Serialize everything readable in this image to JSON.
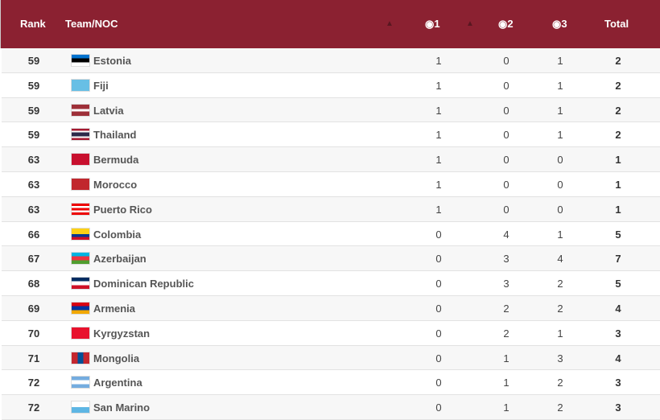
{
  "header": {
    "rank": "Rank",
    "team": "Team/NOC",
    "gold": "1",
    "silver": "2",
    "bronze": "3",
    "total": "Total",
    "medal_icon": "medal-icon",
    "sort_icon": "sort-icon",
    "bg": "#8b2131"
  },
  "rows": [
    {
      "rank": "59",
      "team": "Estonia",
      "gold": "1",
      "silver": "0",
      "bronze": "1",
      "total": "2",
      "flag": [
        "#0072ce",
        "#000000",
        "#ffffff"
      ]
    },
    {
      "rank": "59",
      "team": "Fiji",
      "gold": "1",
      "silver": "0",
      "bronze": "1",
      "total": "2",
      "flag": [
        "#68bfe5",
        "#68bfe5"
      ]
    },
    {
      "rank": "59",
      "team": "Latvia",
      "gold": "1",
      "silver": "0",
      "bronze": "1",
      "total": "2",
      "flag": [
        "#9e3039",
        "#9e3039",
        "#ffffff",
        "#9e3039",
        "#9e3039"
      ]
    },
    {
      "rank": "59",
      "team": "Thailand",
      "gold": "1",
      "silver": "0",
      "bronze": "1",
      "total": "2",
      "flag": [
        "#a51931",
        "#ffffff",
        "#2d2a4a",
        "#2d2a4a",
        "#ffffff",
        "#a51931"
      ]
    },
    {
      "rank": "63",
      "team": "Bermuda",
      "gold": "1",
      "silver": "0",
      "bronze": "0",
      "total": "1",
      "flag": [
        "#c8102e",
        "#c8102e"
      ]
    },
    {
      "rank": "63",
      "team": "Morocco",
      "gold": "1",
      "silver": "0",
      "bronze": "0",
      "total": "1",
      "flag": [
        "#c1272d",
        "#c1272d"
      ]
    },
    {
      "rank": "63",
      "team": "Puerto Rico",
      "gold": "1",
      "silver": "0",
      "bronze": "0",
      "total": "1",
      "flag": [
        "#ed0000",
        "#ffffff",
        "#ed0000",
        "#ffffff",
        "#ed0000"
      ]
    },
    {
      "rank": "66",
      "team": "Colombia",
      "gold": "0",
      "silver": "4",
      "bronze": "1",
      "total": "5",
      "flag": [
        "#fcd116",
        "#fcd116",
        "#003893",
        "#ce1126"
      ]
    },
    {
      "rank": "67",
      "team": "Azerbaijan",
      "gold": "0",
      "silver": "3",
      "bronze": "4",
      "total": "7",
      "flag": [
        "#00b5e2",
        "#ef3340",
        "#509e2f"
      ]
    },
    {
      "rank": "68",
      "team": "Dominican Republic",
      "gold": "0",
      "silver": "3",
      "bronze": "2",
      "total": "5",
      "flag": [
        "#002d62",
        "#ffffff",
        "#ce1126"
      ]
    },
    {
      "rank": "69",
      "team": "Armenia",
      "gold": "0",
      "silver": "2",
      "bronze": "2",
      "total": "4",
      "flag": [
        "#d90012",
        "#0033a0",
        "#f2a800"
      ]
    },
    {
      "rank": "70",
      "team": "Kyrgyzstan",
      "gold": "0",
      "silver": "2",
      "bronze": "1",
      "total": "3",
      "flag": [
        "#e8112d",
        "#e8112d"
      ]
    },
    {
      "rank": "71",
      "team": "Mongolia",
      "gold": "0",
      "silver": "1",
      "bronze": "3",
      "total": "4",
      "flag": [
        "#c4272f",
        "#015197",
        "#c4272f"
      ],
      "vertical": true
    },
    {
      "rank": "72",
      "team": "Argentina",
      "gold": "0",
      "silver": "1",
      "bronze": "2",
      "total": "3",
      "flag": [
        "#74acdf",
        "#ffffff",
        "#74acdf"
      ]
    },
    {
      "rank": "72",
      "team": "San Marino",
      "gold": "0",
      "silver": "1",
      "bronze": "2",
      "total": "3",
      "flag": [
        "#ffffff",
        "#5eb6e4"
      ]
    }
  ]
}
